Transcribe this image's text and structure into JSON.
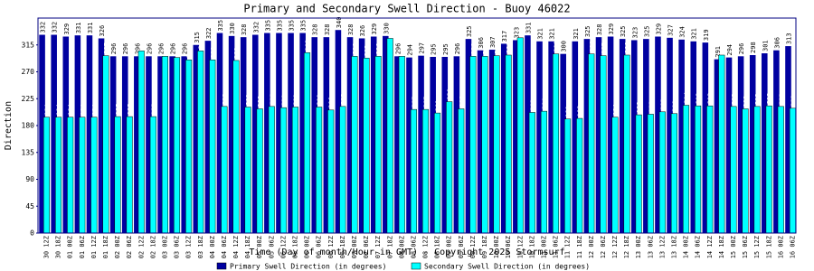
{
  "chart_data": {
    "type": "bar",
    "title": "Primary and Secondary Swell Direction - Buoy 46022",
    "x_label": "Time (Day of month/Hour in GMT) - Copyright 2025 Stormsurf",
    "y_label": "Direction",
    "categories": [
      "30 12Z",
      "30 18Z",
      "01 00Z",
      "01 06Z",
      "01 12Z",
      "01 18Z",
      "02 00Z",
      "02 06Z",
      "02 12Z",
      "02 18Z",
      "03 00Z",
      "03 06Z",
      "03 12Z",
      "03 18Z",
      "04 00Z",
      "04 06Z",
      "04 12Z",
      "04 18Z",
      "05 00Z",
      "05 06Z",
      "05 12Z",
      "05 18Z",
      "06 00Z",
      "06 06Z",
      "06 12Z",
      "06 18Z",
      "07 00Z",
      "07 06Z",
      "07 12Z",
      "07 18Z",
      "08 00Z",
      "08 06Z",
      "08 12Z",
      "08 18Z",
      "09 00Z",
      "09 06Z",
      "09 12Z",
      "09 18Z",
      "10 00Z",
      "10 06Z",
      "10 12Z",
      "10 18Z",
      "11 00Z",
      "11 06Z",
      "11 12Z",
      "11 18Z",
      "12 00Z",
      "12 06Z",
      "12 12Z",
      "12 18Z",
      "13 00Z",
      "13 06Z",
      "13 12Z",
      "13 18Z",
      "14 00Z",
      "14 06Z",
      "14 12Z",
      "14 18Z",
      "15 00Z",
      "15 06Z",
      "15 12Z",
      "15 18Z",
      "16 00Z",
      "16 06Z"
    ],
    "series": [
      {
        "name": "Primary Swell Direction (in degrees)",
        "color": "#0000a0",
        "values": [
          332,
          332,
          329,
          331,
          331,
          326,
          296,
          296,
          296,
          296,
          296,
          296,
          296,
          315,
          322,
          335,
          330,
          328,
          332,
          335,
          335,
          335,
          335,
          328,
          328,
          340,
          328,
          326,
          329,
          330,
          296,
          294,
          297,
          295,
          295,
          296,
          325,
          306,
          307,
          317,
          323,
          331,
          321,
          321,
          300,
          321,
          325,
          328,
          329,
          325,
          323,
          325,
          329,
          327,
          324,
          321,
          319,
          291,
          294,
          296,
          298,
          301,
          306,
          313
        ]
      },
      {
        "name": "Secondary Swell Direction (in degrees)",
        "color": "#00ffff",
        "values": [
          194,
          194,
          194,
          194,
          194,
          297,
          195,
          195,
          305,
          195,
          296,
          294,
          290,
          305,
          290,
          212,
          289,
          211,
          208,
          212,
          210,
          211,
          302,
          211,
          206,
          212,
          296,
          293,
          296,
          326,
          296,
          207,
          207,
          201,
          220,
          208,
          296,
          296,
          297,
          298,
          327,
          202,
          204,
          300,
          191,
          192,
          300,
          297,
          194,
          298,
          198,
          199,
          203,
          200,
          214,
          213,
          213,
          298,
          212,
          208,
          212,
          213,
          212,
          209
        ]
      }
    ],
    "ylim": [
      0,
      360
    ],
    "yticks": [
      0,
      45,
      90,
      135,
      180,
      225,
      270,
      315
    ]
  }
}
